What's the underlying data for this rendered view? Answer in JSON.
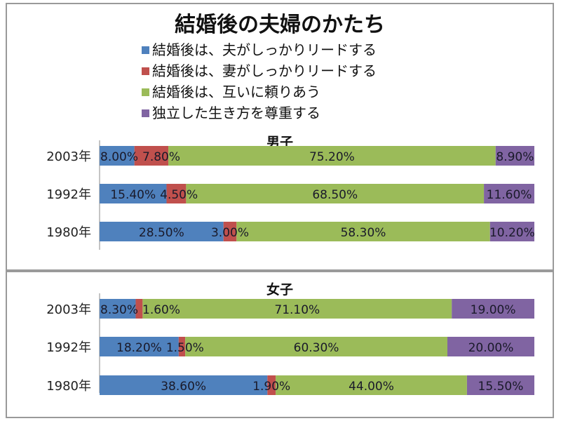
{
  "title": "結婚後の夫婦のかたち",
  "legend": [
    {
      "label": "結婚後は、夫がしっかりリードする",
      "color": "#4f81bd"
    },
    {
      "label": "結婚後は、妻がしっかりリードする",
      "color": "#c0504d"
    },
    {
      "label": "結婚後は、互いに頼りあう",
      "color": "#9bbb59"
    },
    {
      "label": "独立した生き方を尊重する",
      "color": "#8064a2"
    }
  ],
  "chart_data": [
    {
      "type": "bar",
      "orientation": "horizontal",
      "stacked": "100%",
      "title": "男子",
      "categories": [
        "2003年",
        "1992年",
        "1980年"
      ],
      "series": [
        {
          "name": "結婚後は、夫がしっかりリードする",
          "values": [
            8.0,
            15.4,
            28.5
          ],
          "labels": [
            "8.00%",
            "15.40%",
            "28.50%"
          ]
        },
        {
          "name": "結婚後は、妻がしっかりリードする",
          "values": [
            7.8,
            4.5,
            3.0
          ],
          "labels": [
            "7.80%",
            "4.50%",
            "3.00%"
          ]
        },
        {
          "name": "結婚後は、互いに頼りあう",
          "values": [
            75.2,
            68.5,
            58.3
          ],
          "labels": [
            "75.20%",
            "68.50%",
            "58.30%"
          ]
        },
        {
          "name": "独立した生き方を尊重する",
          "values": [
            8.9,
            11.6,
            10.2
          ],
          "labels": [
            "8.90%",
            "11.60%",
            "10.20%"
          ]
        }
      ]
    },
    {
      "type": "bar",
      "orientation": "horizontal",
      "stacked": "100%",
      "title": "女子",
      "categories": [
        "2003年",
        "1992年",
        "1980年"
      ],
      "series": [
        {
          "name": "結婚後は、夫がしっかりリードする",
          "values": [
            8.3,
            18.2,
            38.6
          ],
          "labels": [
            "8.30%",
            "18.20%",
            "38.60%"
          ]
        },
        {
          "name": "結婚後は、妻がしっかりリードする",
          "values": [
            1.6,
            1.5,
            1.9
          ],
          "labels": [
            "1.60%",
            "1.50%",
            "1.90%"
          ]
        },
        {
          "name": "結婚後は、互いに頼りあう",
          "values": [
            71.1,
            60.3,
            44.0
          ],
          "labels": [
            "71.10%",
            "60.30%",
            "44.00%"
          ]
        },
        {
          "name": "独立した生き方を尊重する",
          "values": [
            19.0,
            20.0,
            15.5
          ],
          "labels": [
            "19.00%",
            "20.00%",
            "15.50%"
          ]
        }
      ]
    }
  ]
}
